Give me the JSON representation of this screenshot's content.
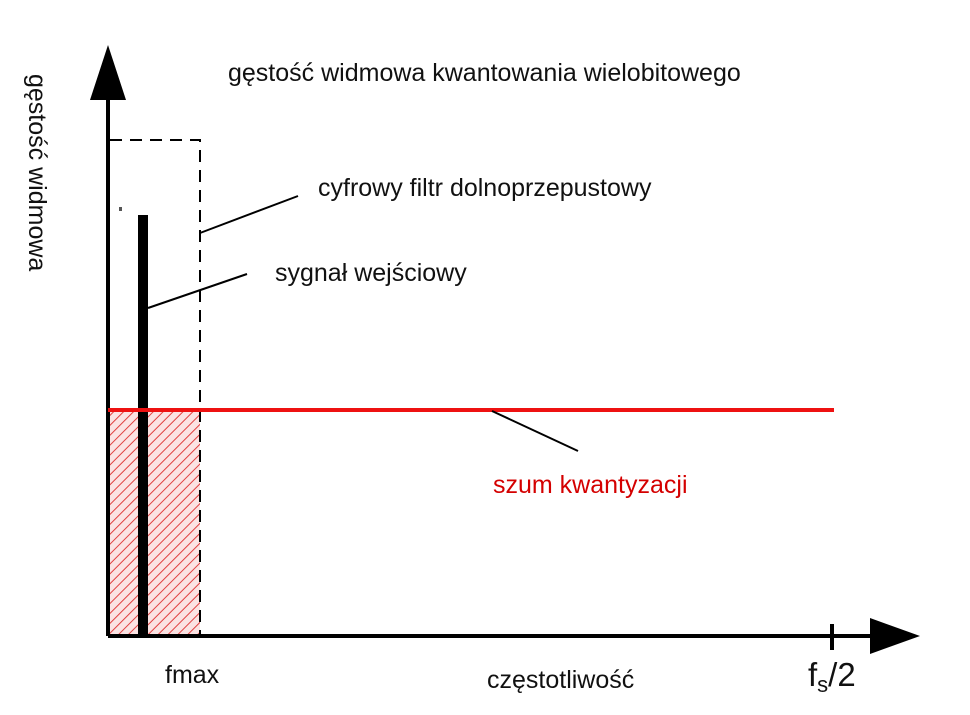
{
  "title": "gęstość widmowa kwantowania wielobitowego",
  "y_axis_label": "gęstość widmowa",
  "x_axis_label": "częstotliwość",
  "fmax_label": "fmax",
  "fs_half": {
    "main": "f",
    "sub": "s",
    "tail": "/2"
  },
  "annotations": {
    "filter": "cyfrowy filtr dolnoprzepustowy",
    "signal": "sygnał wejściowy",
    "noise": "szum kwantyzacji"
  },
  "colors": {
    "noise": "#ee1111",
    "noise_text": "#d40000",
    "hatch": "#e04040",
    "axes": "#000000"
  }
}
